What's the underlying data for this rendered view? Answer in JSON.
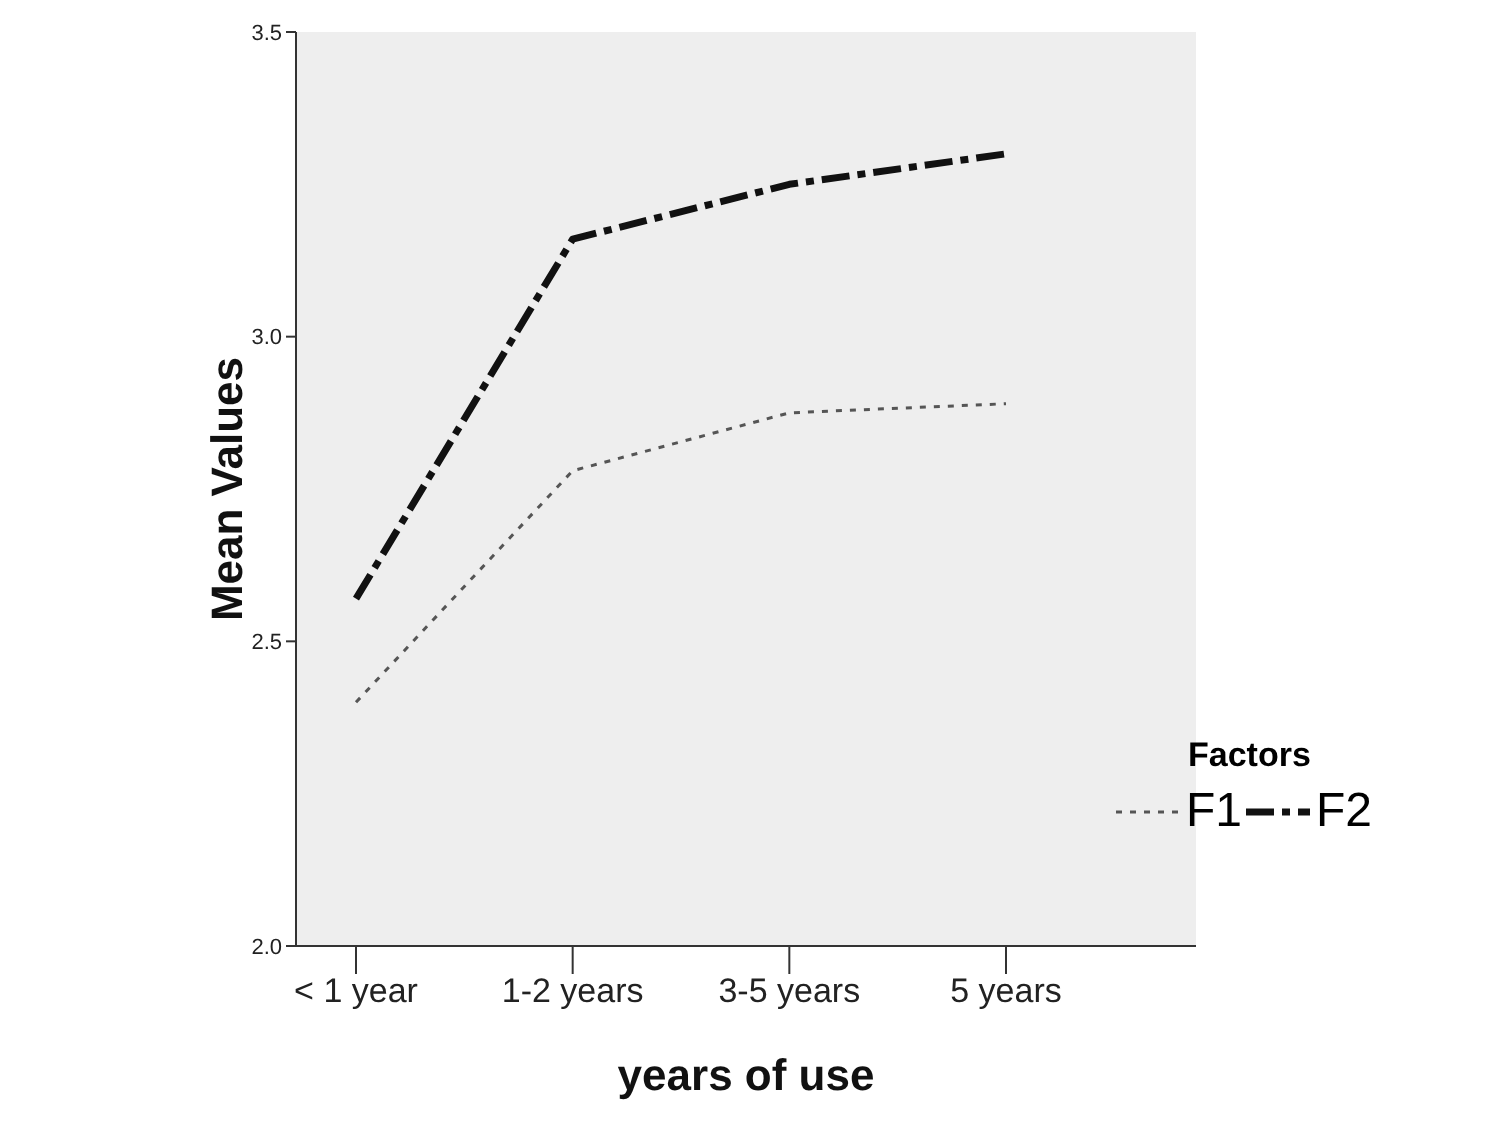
{
  "chart_data": {
    "type": "line",
    "xlabel": "years of use",
    "ylabel": "Mean Values",
    "legend_title": "Factors",
    "legend": "bottom right",
    "grid": false,
    "marker": "none",
    "categories": [
      "< 1 year",
      "1-2 years",
      "3-5 years",
      "5 years"
    ],
    "ylim": [
      2.0,
      3.5
    ],
    "yticks": [
      {
        "value": 2.0,
        "label": "2.0"
      },
      {
        "value": 2.5,
        "label": "2.5"
      },
      {
        "value": 3.0,
        "label": "3.0"
      },
      {
        "value": 3.5,
        "label": "3.5"
      }
    ],
    "series": [
      {
        "name": "F1",
        "color": "#555555",
        "line_style": "dotted",
        "values": [
          2.4,
          2.78,
          2.875,
          2.89
        ]
      },
      {
        "name": "F2",
        "color": "#111111",
        "line_style": "dashdot",
        "values": [
          2.57,
          3.16,
          3.25,
          3.3
        ]
      }
    ]
  }
}
